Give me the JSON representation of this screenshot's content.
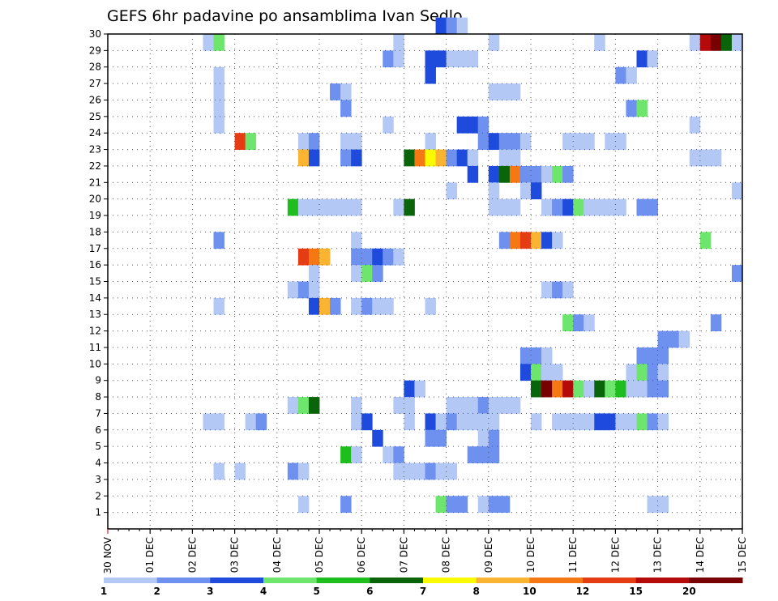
{
  "chart_data": {
    "type": "heatmap",
    "title": "GEFS 6hr padavine po ansamblima Ivan Sedlo",
    "x_ticks": [
      "30 NOV",
      "01 DEC",
      "02 DEC",
      "03 DEC",
      "04 DEC",
      "05 DEC",
      "06 DEC",
      "07 DEC",
      "08 DEC",
      "09 DEC",
      "10 DEC",
      "11 DEC",
      "12 DEC",
      "13 DEC",
      "14 DEC",
      "15 DEC"
    ],
    "y_ticks": [
      "1",
      "2",
      "3",
      "4",
      "5",
      "6",
      "7",
      "8",
      "9",
      "10",
      "11",
      "12",
      "13",
      "14",
      "15",
      "16",
      "17",
      "18",
      "19",
      "20",
      "21",
      "22",
      "23",
      "24",
      "25",
      "26",
      "27",
      "28",
      "29",
      "30"
    ],
    "y_range": [
      0,
      30
    ],
    "x_steps_per_day": 4,
    "x_total_steps": 60,
    "grid": true,
    "legend_position": "bottom",
    "colorbar": {
      "colors": [
        "#b4c8f5",
        "#6e91f0",
        "#1e4bdc",
        "#6ee66e",
        "#1ebe1e",
        "#0a640a",
        "#fafa00",
        "#fab432",
        "#f57814",
        "#e63c14",
        "#b40a0a",
        "#780000"
      ],
      "labels": [
        "1",
        "2",
        "3",
        "4",
        "5",
        "6",
        "7",
        "8",
        "10",
        "12",
        "15",
        "20"
      ]
    },
    "cells": [
      [
        10,
        29,
        1
      ],
      [
        11,
        29,
        4
      ],
      [
        28,
        29,
        1
      ],
      [
        37,
        29,
        1
      ],
      [
        47,
        29,
        1
      ],
      [
        56,
        29,
        1
      ],
      [
        57,
        29,
        11
      ],
      [
        58,
        29,
        12
      ],
      [
        59,
        29,
        6
      ],
      [
        60,
        29,
        1
      ],
      [
        32,
        30,
        3
      ],
      [
        33,
        30,
        2
      ],
      [
        34,
        30,
        1
      ],
      [
        27,
        28,
        2
      ],
      [
        28,
        28,
        1
      ],
      [
        31,
        28,
        3
      ],
      [
        32,
        28,
        3
      ],
      [
        33,
        28,
        1
      ],
      [
        34,
        28,
        1
      ],
      [
        35,
        28,
        1
      ],
      [
        51,
        28,
        3
      ],
      [
        52,
        28,
        1
      ],
      [
        31,
        27,
        3
      ],
      [
        11,
        27,
        1
      ],
      [
        49,
        27,
        2
      ],
      [
        50,
        27,
        1
      ],
      [
        11,
        26,
        1
      ],
      [
        22,
        26,
        2
      ],
      [
        23,
        26,
        1
      ],
      [
        37,
        26,
        1
      ],
      [
        38,
        26,
        1
      ],
      [
        39,
        26,
        1
      ],
      [
        11,
        25,
        1
      ],
      [
        23,
        25,
        2
      ],
      [
        50,
        25,
        2
      ],
      [
        51,
        25,
        4
      ],
      [
        11,
        24,
        1
      ],
      [
        27,
        24,
        1
      ],
      [
        34,
        24,
        3
      ],
      [
        35,
        24,
        3
      ],
      [
        36,
        24,
        2
      ],
      [
        56,
        24,
        1
      ],
      [
        13,
        23,
        10
      ],
      [
        14,
        23,
        4
      ],
      [
        19,
        23,
        1
      ],
      [
        20,
        23,
        2
      ],
      [
        23,
        23,
        1
      ],
      [
        24,
        23,
        1
      ],
      [
        31,
        23,
        1
      ],
      [
        36,
        23,
        2
      ],
      [
        37,
        23,
        3
      ],
      [
        38,
        23,
        2
      ],
      [
        39,
        23,
        2
      ],
      [
        40,
        23,
        1
      ],
      [
        44,
        23,
        1
      ],
      [
        45,
        23,
        1
      ],
      [
        46,
        23,
        1
      ],
      [
        48,
        23,
        1
      ],
      [
        49,
        23,
        1
      ],
      [
        19,
        22,
        8
      ],
      [
        20,
        22,
        3
      ],
      [
        23,
        22,
        2
      ],
      [
        24,
        22,
        3
      ],
      [
        29,
        22,
        6
      ],
      [
        30,
        22,
        9
      ],
      [
        31,
        22,
        7
      ],
      [
        32,
        22,
        8
      ],
      [
        33,
        22,
        2
      ],
      [
        34,
        22,
        3
      ],
      [
        35,
        22,
        1
      ],
      [
        38,
        22,
        1
      ],
      [
        39,
        22,
        1
      ],
      [
        56,
        22,
        1
      ],
      [
        57,
        22,
        1
      ],
      [
        58,
        22,
        1
      ],
      [
        35,
        21,
        3
      ],
      [
        37,
        21,
        3
      ],
      [
        38,
        21,
        6
      ],
      [
        39,
        21,
        9
      ],
      [
        40,
        21,
        2
      ],
      [
        41,
        21,
        2
      ],
      [
        42,
        21,
        1
      ],
      [
        43,
        21,
        4
      ],
      [
        44,
        21,
        2
      ],
      [
        33,
        20,
        1
      ],
      [
        37,
        20,
        1
      ],
      [
        40,
        20,
        1
      ],
      [
        41,
        20,
        3
      ],
      [
        60,
        20,
        1
      ],
      [
        18,
        19,
        5
      ],
      [
        19,
        19,
        1
      ],
      [
        20,
        19,
        1
      ],
      [
        21,
        19,
        1
      ],
      [
        22,
        19,
        1
      ],
      [
        23,
        19,
        1
      ],
      [
        24,
        19,
        1
      ],
      [
        28,
        19,
        1
      ],
      [
        29,
        19,
        6
      ],
      [
        37,
        19,
        1
      ],
      [
        38,
        19,
        1
      ],
      [
        39,
        19,
        1
      ],
      [
        42,
        19,
        1
      ],
      [
        43,
        19,
        2
      ],
      [
        44,
        19,
        3
      ],
      [
        45,
        19,
        4
      ],
      [
        46,
        19,
        1
      ],
      [
        47,
        19,
        1
      ],
      [
        48,
        19,
        1
      ],
      [
        49,
        19,
        1
      ],
      [
        51,
        19,
        2
      ],
      [
        52,
        19,
        2
      ],
      [
        11,
        17,
        2
      ],
      [
        24,
        17,
        1
      ],
      [
        38,
        17,
        2
      ],
      [
        39,
        17,
        9
      ],
      [
        40,
        17,
        10
      ],
      [
        41,
        17,
        8
      ],
      [
        42,
        17,
        3
      ],
      [
        43,
        17,
        1
      ],
      [
        57,
        17,
        4
      ],
      [
        19,
        16,
        10
      ],
      [
        20,
        16,
        9
      ],
      [
        21,
        16,
        8
      ],
      [
        24,
        16,
        2
      ],
      [
        25,
        16,
        2
      ],
      [
        26,
        16,
        3
      ],
      [
        27,
        16,
        2
      ],
      [
        28,
        16,
        1
      ],
      [
        20,
        15,
        1
      ],
      [
        24,
        15,
        1
      ],
      [
        25,
        15,
        4
      ],
      [
        26,
        15,
        2
      ],
      [
        60,
        15,
        2
      ],
      [
        18,
        14,
        1
      ],
      [
        19,
        14,
        2
      ],
      [
        20,
        14,
        1
      ],
      [
        42,
        14,
        1
      ],
      [
        43,
        14,
        2
      ],
      [
        44,
        14,
        1
      ],
      [
        11,
        13,
        1
      ],
      [
        20,
        13,
        3
      ],
      [
        21,
        13,
        8
      ],
      [
        22,
        13,
        2
      ],
      [
        24,
        13,
        1
      ],
      [
        25,
        13,
        2
      ],
      [
        26,
        13,
        1
      ],
      [
        27,
        13,
        1
      ],
      [
        31,
        13,
        1
      ],
      [
        44,
        12,
        4
      ],
      [
        45,
        12,
        2
      ],
      [
        46,
        12,
        1
      ],
      [
        58,
        12,
        2
      ],
      [
        53,
        11,
        2
      ],
      [
        54,
        11,
        2
      ],
      [
        55,
        11,
        1
      ],
      [
        40,
        10,
        2
      ],
      [
        41,
        10,
        2
      ],
      [
        42,
        10,
        1
      ],
      [
        51,
        10,
        2
      ],
      [
        52,
        10,
        2
      ],
      [
        53,
        10,
        2
      ],
      [
        40,
        9,
        3
      ],
      [
        41,
        9,
        4
      ],
      [
        42,
        9,
        1
      ],
      [
        43,
        9,
        1
      ],
      [
        50,
        9,
        1
      ],
      [
        51,
        9,
        4
      ],
      [
        52,
        9,
        2
      ],
      [
        53,
        9,
        1
      ],
      [
        29,
        8,
        3
      ],
      [
        30,
        8,
        1
      ],
      [
        41,
        8,
        6
      ],
      [
        42,
        8,
        12
      ],
      [
        43,
        8,
        9
      ],
      [
        44,
        8,
        11
      ],
      [
        45,
        8,
        4
      ],
      [
        46,
        8,
        1
      ],
      [
        47,
        8,
        6
      ],
      [
        48,
        8,
        4
      ],
      [
        49,
        8,
        5
      ],
      [
        50,
        8,
        1
      ],
      [
        51,
        8,
        1
      ],
      [
        52,
        8,
        2
      ],
      [
        53,
        8,
        2
      ],
      [
        18,
        7,
        1
      ],
      [
        19,
        7,
        4
      ],
      [
        20,
        7,
        6
      ],
      [
        24,
        7,
        1
      ],
      [
        28,
        7,
        1
      ],
      [
        29,
        7,
        1
      ],
      [
        33,
        7,
        1
      ],
      [
        34,
        7,
        1
      ],
      [
        35,
        7,
        1
      ],
      [
        36,
        7,
        2
      ],
      [
        37,
        7,
        1
      ],
      [
        38,
        7,
        1
      ],
      [
        39,
        7,
        1
      ],
      [
        10,
        6,
        1
      ],
      [
        11,
        6,
        1
      ],
      [
        14,
        6,
        1
      ],
      [
        15,
        6,
        2
      ],
      [
        24,
        6,
        1
      ],
      [
        25,
        6,
        3
      ],
      [
        29,
        6,
        1
      ],
      [
        31,
        6,
        3
      ],
      [
        32,
        6,
        1
      ],
      [
        33,
        6,
        2
      ],
      [
        34,
        6,
        1
      ],
      [
        35,
        6,
        1
      ],
      [
        36,
        6,
        1
      ],
      [
        37,
        6,
        1
      ],
      [
        41,
        6,
        1
      ],
      [
        43,
        6,
        1
      ],
      [
        44,
        6,
        1
      ],
      [
        45,
        6,
        1
      ],
      [
        46,
        6,
        1
      ],
      [
        47,
        6,
        3
      ],
      [
        48,
        6,
        3
      ],
      [
        49,
        6,
        1
      ],
      [
        50,
        6,
        1
      ],
      [
        51,
        6,
        4
      ],
      [
        52,
        6,
        2
      ],
      [
        53,
        6,
        1
      ],
      [
        26,
        5,
        3
      ],
      [
        31,
        5,
        2
      ],
      [
        32,
        5,
        2
      ],
      [
        36,
        5,
        1
      ],
      [
        37,
        5,
        2
      ],
      [
        23,
        4,
        5
      ],
      [
        24,
        4,
        1
      ],
      [
        27,
        4,
        1
      ],
      [
        28,
        4,
        2
      ],
      [
        35,
        4,
        2
      ],
      [
        36,
        4,
        2
      ],
      [
        37,
        4,
        2
      ],
      [
        11,
        3,
        1
      ],
      [
        13,
        3,
        1
      ],
      [
        18,
        3,
        2
      ],
      [
        19,
        3,
        1
      ],
      [
        28,
        3,
        1
      ],
      [
        29,
        3,
        1
      ],
      [
        30,
        3,
        1
      ],
      [
        31,
        3,
        2
      ],
      [
        32,
        3,
        1
      ],
      [
        33,
        3,
        1
      ],
      [
        19,
        1,
        1
      ],
      [
        23,
        1,
        2
      ],
      [
        32,
        1,
        4
      ],
      [
        33,
        1,
        2
      ],
      [
        34,
        1,
        2
      ],
      [
        36,
        1,
        1
      ],
      [
        37,
        1,
        2
      ],
      [
        38,
        1,
        2
      ],
      [
        52,
        1,
        1
      ],
      [
        53,
        1,
        1
      ]
    ]
  }
}
